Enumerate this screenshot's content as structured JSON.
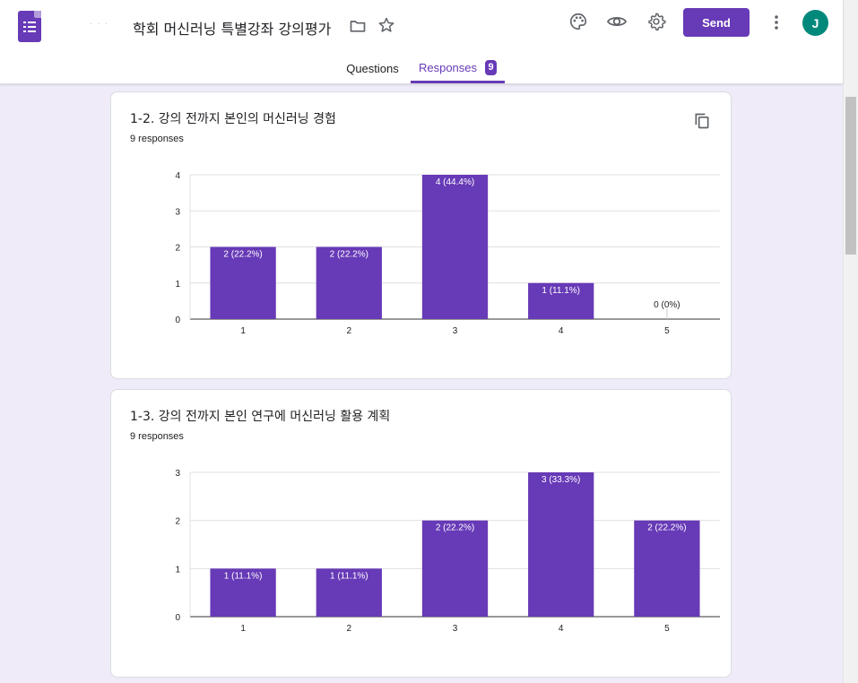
{
  "header": {
    "title": "학회 머신러닝 특별강좌 강의평가",
    "send_label": "Send",
    "avatar_initial": "J",
    "brand_color": "#673ab7",
    "icons": [
      "forms-logo-icon",
      "folder-icon",
      "star-icon",
      "palette-icon",
      "eye-icon",
      "gear-icon",
      "more-vert-icon"
    ]
  },
  "tabs": {
    "questions": "Questions",
    "responses": "Responses",
    "responses_count": "9"
  },
  "questions": [
    {
      "title": "1-2. 강의 전까지 본인의 머신러닝 경험",
      "responses_text": "9 responses"
    },
    {
      "title": "1-3. 강의 전까지 본인 연구에 머신러닝 활용 계획",
      "responses_text": "9 responses"
    }
  ],
  "chart_data": [
    {
      "type": "bar",
      "categories": [
        "1",
        "2",
        "3",
        "4",
        "5"
      ],
      "values": [
        2,
        2,
        4,
        1,
        0
      ],
      "labels": [
        "2 (22.2%)",
        "2 (22.2%)",
        "4 (44.4%)",
        "1 (11.1%)",
        "0 (0%)"
      ],
      "ylim": [
        0,
        4
      ],
      "yticks": [
        "0",
        "1",
        "2",
        "3",
        "4"
      ],
      "color": "#673ab7",
      "grid": true
    },
    {
      "type": "bar",
      "categories": [
        "1",
        "2",
        "3",
        "4",
        "5"
      ],
      "values": [
        1,
        1,
        2,
        3,
        2
      ],
      "labels": [
        "1 (11.1%)",
        "1 (11.1%)",
        "2 (22.2%)",
        "3 (33.3%)",
        "2 (22.2%)"
      ],
      "ylim": [
        0,
        3
      ],
      "yticks": [
        "0",
        "1",
        "2",
        "3"
      ],
      "color": "#673ab7",
      "grid": true
    }
  ]
}
